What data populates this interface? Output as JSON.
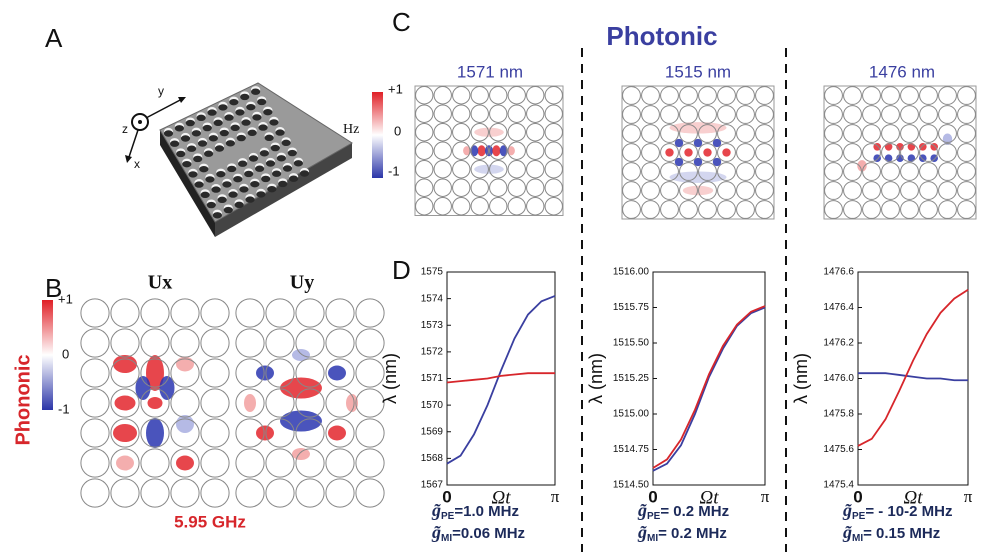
{
  "panels": {
    "a": {
      "label": "A",
      "axes": [
        "z",
        "y",
        "x"
      ]
    },
    "b": {
      "label": "B",
      "maps": [
        "Ux",
        "Uy"
      ],
      "side_label": "Phononic",
      "frequency": "5.95 GHz",
      "colorbar": [
        "+1",
        "0",
        "-1"
      ]
    },
    "c": {
      "label": "C",
      "title": "Photonic",
      "modes": [
        "1571 nm",
        "1515 nm",
        "1476 nm"
      ],
      "colorbar": [
        "+1",
        "0",
        "-1"
      ],
      "colorbar_title": "Hz"
    },
    "d": {
      "label": "D"
    }
  },
  "chart_data": [
    {
      "type": "line",
      "x": [
        0,
        0.393,
        0.785,
        1.178,
        1.571,
        1.963,
        2.356,
        2.749,
        3.142
      ],
      "xlim": [
        0,
        3.142
      ],
      "xticks": [
        0,
        {
          "value": 3.142,
          "label": "π"
        }
      ],
      "xlabel": "Ωt",
      "ylabel": "λ (nm)",
      "ylim": [
        1567,
        1575
      ],
      "yticks": [
        1567,
        1568,
        1569,
        1570,
        1571,
        1572,
        1573,
        1574,
        1575
      ],
      "series": [
        {
          "color": "#3a3fa0",
          "values": [
            1567.8,
            1568.1,
            1568.9,
            1570.0,
            1571.3,
            1572.5,
            1573.4,
            1573.9,
            1574.1
          ]
        },
        {
          "color": "#d7262b",
          "values": [
            1570.85,
            1570.9,
            1570.95,
            1571.0,
            1571.1,
            1571.15,
            1571.2,
            1571.2,
            1571.2
          ]
        }
      ],
      "annotations": [
        {
          "symbol": "g̃",
          "sub": "PE",
          "text": "=1.0 MHz"
        },
        {
          "symbol": "g̃",
          "sub": "MI",
          "text": "=0.06 MHz"
        }
      ]
    },
    {
      "type": "line",
      "x": [
        0,
        0.393,
        0.785,
        1.178,
        1.571,
        1.963,
        2.356,
        2.749,
        3.142
      ],
      "xlim": [
        0,
        3.142
      ],
      "xticks": [
        0,
        {
          "value": 3.142,
          "label": "π"
        }
      ],
      "xlabel": "Ωt",
      "ylabel": "λ (nm)",
      "ylim": [
        1514.5,
        1516
      ],
      "yticks": [
        {
          "value": 1514.5,
          "label": "1514.50"
        },
        1514.75,
        {
          "value": 1515,
          "label": "1515.00"
        },
        1515.25,
        {
          "value": 1515.5,
          "label": "1515.50"
        },
        1515.75,
        {
          "value": 1516,
          "label": "1516.00"
        }
      ],
      "series": [
        {
          "color": "#3a3fa0",
          "values": [
            1514.6,
            1514.65,
            1514.78,
            1515.0,
            1515.26,
            1515.46,
            1515.62,
            1515.71,
            1515.75
          ]
        },
        {
          "color": "#d7262b",
          "values": [
            1514.62,
            1514.68,
            1514.82,
            1515.03,
            1515.28,
            1515.48,
            1515.63,
            1515.72,
            1515.76
          ]
        }
      ],
      "annotations": [
        {
          "symbol": "g̃",
          "sub": "PE",
          "text": "= 0.2 MHz"
        },
        {
          "symbol": "g̃",
          "sub": "MI",
          "text": "= 0.2 MHz"
        }
      ]
    },
    {
      "type": "line",
      "x": [
        0,
        0.393,
        0.785,
        1.178,
        1.571,
        1.963,
        2.356,
        2.749,
        3.142
      ],
      "xlim": [
        0,
        3.142
      ],
      "xticks": [
        0,
        {
          "value": 3.142,
          "label": "π"
        }
      ],
      "xlabel": "Ωt",
      "ylabel": "λ (nm)",
      "ylim": [
        1475.4,
        1476.6
      ],
      "yticks": [
        1475.4,
        1475.6,
        1475.8,
        {
          "value": 1476,
          "label": "1476.0"
        },
        1476.2,
        1476.4,
        1476.6
      ],
      "series": [
        {
          "color": "#3a3fa0",
          "values": [
            1476.03,
            1476.03,
            1476.03,
            1476.02,
            1476.01,
            1476.0,
            1476.0,
            1475.99,
            1475.99
          ]
        },
        {
          "color": "#d7262b",
          "values": [
            1475.62,
            1475.66,
            1475.77,
            1475.93,
            1476.1,
            1476.25,
            1476.37,
            1476.45,
            1476.5
          ]
        }
      ],
      "annotations": [
        {
          "symbol": "g̃",
          "sub": "PE",
          "text": "= - 10-2 MHz"
        },
        {
          "symbol": "g̃",
          "sub": "MI",
          "text": "= 0.15 MHz"
        }
      ]
    }
  ]
}
